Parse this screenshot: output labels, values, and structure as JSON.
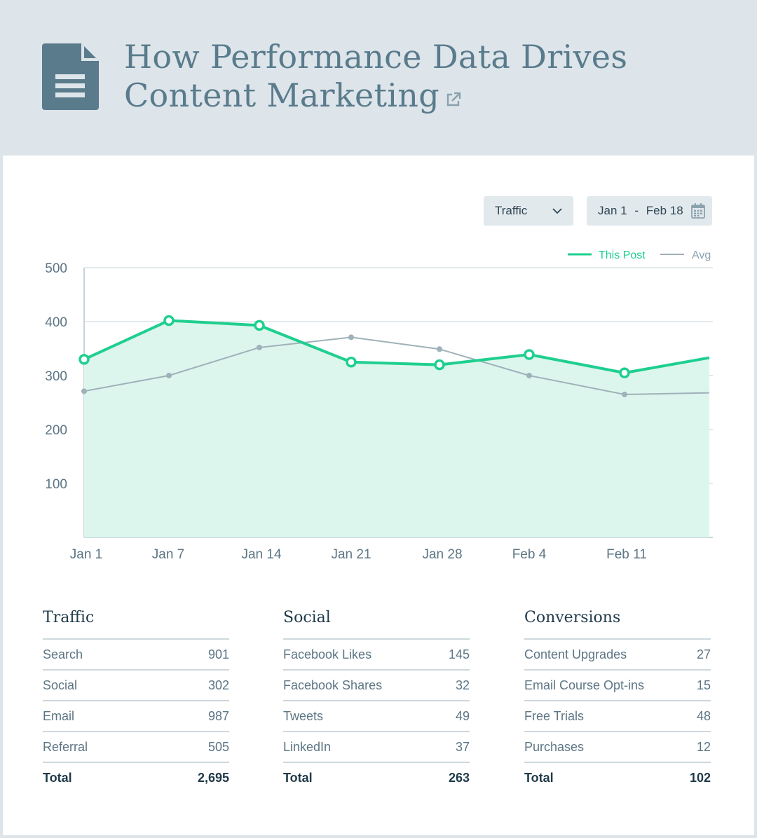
{
  "title": {
    "line1": "How Performance Data Drives",
    "line2": "Content Marketing",
    "icon": "document-icon",
    "link_icon": "external-link-icon"
  },
  "controls": {
    "metric_select": {
      "value": "Traffic",
      "icon": "chevron-down-icon"
    },
    "date_range": {
      "start": "Jan 1",
      "separator": "-",
      "end": "Feb 18",
      "icon": "calendar-icon"
    }
  },
  "colors": {
    "page_bg": "#dde5ea",
    "title": "#597b8c",
    "this_post": "#1fcf8f",
    "this_post_fill": "#dcf6ee",
    "avg": "#9fb1b9"
  },
  "chart_data": {
    "type": "line",
    "x": [
      "Jan 1",
      "Jan 7",
      "Jan 14",
      "Jan 21",
      "Jan 28",
      "Feb 4",
      "Feb 11",
      "Feb 18"
    ],
    "x_tick_labels": [
      "Jan 1",
      "Jan 7",
      "Jan 14",
      "Jan 21",
      "Jan 28",
      "Feb 4",
      "Feb 11"
    ],
    "ylim": [
      0,
      500
    ],
    "y_ticks": [
      100,
      200,
      300,
      400,
      500
    ],
    "grid": true,
    "legend_position": "top-right",
    "series": [
      {
        "name": "This Post",
        "values": [
          330,
          402,
          393,
          325,
          320,
          339,
          305,
          333
        ],
        "markers": true,
        "filled": true
      },
      {
        "name": "Avg",
        "values": [
          271,
          300,
          352,
          371,
          349,
          300,
          265,
          268
        ],
        "markers": true,
        "filled": false
      }
    ]
  },
  "tables": [
    {
      "title": "Traffic",
      "rows": [
        {
          "label": "Search",
          "value": "901"
        },
        {
          "label": "Social",
          "value": "302"
        },
        {
          "label": "Email",
          "value": "987"
        },
        {
          "label": "Referral",
          "value": "505"
        }
      ],
      "total_label": "Total",
      "total_value": "2,695"
    },
    {
      "title": "Social",
      "rows": [
        {
          "label": "Facebook Likes",
          "value": "145"
        },
        {
          "label": "Facebook Shares",
          "value": "32"
        },
        {
          "label": "Tweets",
          "value": "49"
        },
        {
          "label": "LinkedIn",
          "value": "37"
        }
      ],
      "total_label": "Total",
      "total_value": "263"
    },
    {
      "title": "Conversions",
      "rows": [
        {
          "label": "Content Upgrades",
          "value": "27"
        },
        {
          "label": "Email Course Opt-ins",
          "value": "15"
        },
        {
          "label": "Free Trials",
          "value": "48"
        },
        {
          "label": "Purchases",
          "value": "12"
        }
      ],
      "total_label": "Total",
      "total_value": "102"
    }
  ]
}
